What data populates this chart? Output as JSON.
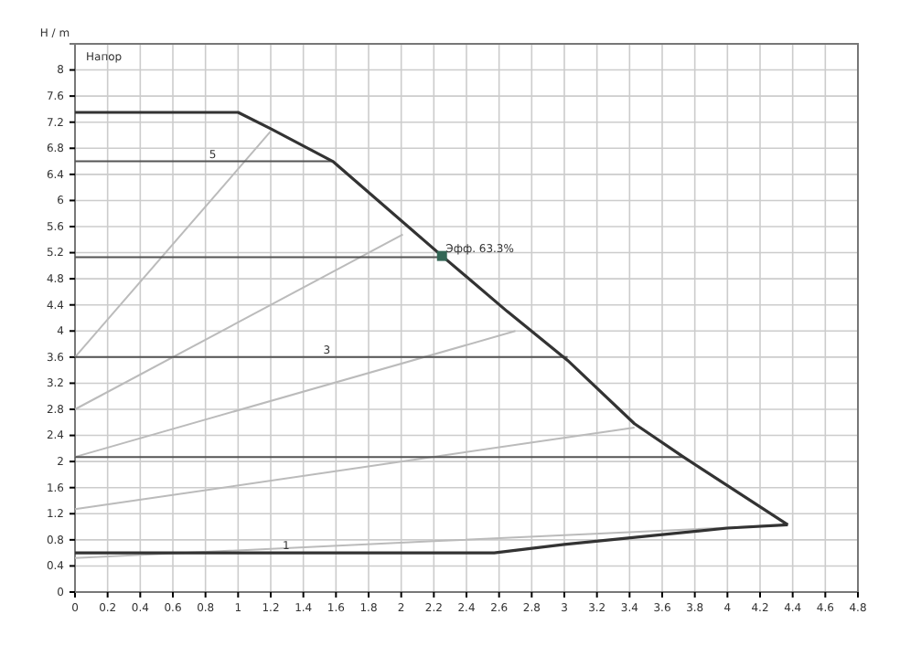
{
  "chart_data": {
    "type": "line",
    "ylabel": "H / m",
    "annotations": [
      "Напор",
      {
        "text": "5",
        "x": 0.8,
        "y": 6.6
      },
      {
        "text": "3",
        "x": 1.5,
        "y": 3.6
      },
      {
        "text": "1",
        "x": 1.25,
        "y": 0.6
      },
      {
        "text": "Эфф.  63.3%",
        "x": 2.25,
        "y": 5.15
      }
    ],
    "xlim": [
      0,
      4.8
    ],
    "ylim": [
      0,
      8.4
    ],
    "xticks": [
      0,
      0.2,
      0.4,
      0.6,
      0.8,
      1,
      1.2,
      1.4,
      1.6,
      1.8,
      2,
      2.2,
      2.4,
      2.6,
      2.8,
      3,
      3.2,
      3.4,
      3.6,
      3.8,
      4,
      4.2,
      4.4,
      4.6,
      4.8
    ],
    "yticks": [
      0,
      0.4,
      0.8,
      1.2,
      1.6,
      2,
      2.4,
      2.8,
      3.2,
      3.6,
      4,
      4.4,
      4.8,
      5.2,
      5.6,
      6,
      6.4,
      6.8,
      7.2,
      7.6,
      8
    ],
    "grid": true,
    "marker": "none",
    "line_style": "solid",
    "series": [
      {
        "type": "line",
        "color": "#bbbbbb",
        "x": [
          0,
          1.2
        ],
        "values": [
          3.6,
          7.06
        ]
      },
      {
        "type": "line",
        "color": "#bbbbbb",
        "x": [
          0,
          2.01
        ],
        "values": [
          2.8,
          5.48
        ]
      },
      {
        "type": "line",
        "color": "#bbbbbb",
        "x": [
          0,
          2.7
        ],
        "values": [
          2.07,
          4.0
        ]
      },
      {
        "type": "line",
        "color": "#bbbbbb",
        "x": [
          0,
          3.43
        ],
        "values": [
          1.27,
          2.52
        ]
      },
      {
        "type": "line",
        "color": "#bbbbbb",
        "x": [
          0,
          2.2,
          4.37
        ],
        "values": [
          0.52,
          0.78,
          1.03
        ]
      },
      {
        "type": "line",
        "color": "#555555",
        "x": [
          0,
          1.58
        ],
        "values": [
          6.6,
          6.6
        ]
      },
      {
        "type": "line",
        "color": "#555555",
        "x": [
          0,
          2.25
        ],
        "values": [
          5.13,
          5.13
        ]
      },
      {
        "type": "line",
        "color": "#555555",
        "x": [
          0,
          3.02
        ],
        "values": [
          3.6,
          3.6
        ]
      },
      {
        "type": "line",
        "color": "#555555",
        "x": [
          0,
          3.73
        ],
        "values": [
          2.07,
          2.07
        ]
      },
      {
        "type": "line",
        "color": "#333333",
        "x": [
          0,
          2.57,
          3.0,
          4.0,
          4.37
        ],
        "values": [
          0.6,
          0.6,
          0.73,
          0.98,
          1.03
        ]
      },
      {
        "type": "line",
        "color": "#333333",
        "x": [
          0,
          1.0,
          1.2,
          1.58,
          2.25,
          2.65,
          3.02,
          3.43,
          3.73,
          4.37
        ],
        "values": [
          7.35,
          7.35,
          7.1,
          6.6,
          5.15,
          4.3,
          3.55,
          2.58,
          2.07,
          1.03
        ]
      },
      {
        "type": "scatter",
        "color": "#336655",
        "marker": "square",
        "x": [
          2.25
        ],
        "values": [
          5.15
        ]
      }
    ]
  }
}
